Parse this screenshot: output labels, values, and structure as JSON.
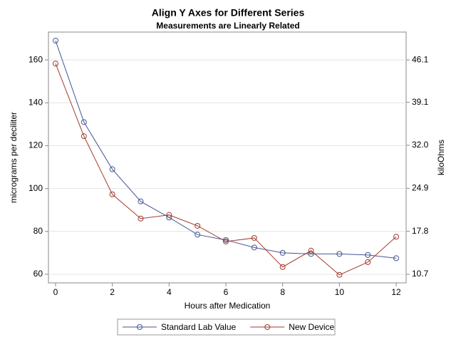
{
  "chart_data": {
    "type": "line",
    "title": "Align Y Axes for Different Series",
    "subtitle": "Measurements are Linearly Related",
    "x_label": "Hours after Medication",
    "y_label": "micrograms per deciliter",
    "y2_label": "kiloOhms",
    "x": [
      0,
      1,
      2,
      3,
      4,
      5,
      6,
      7,
      8,
      9,
      10,
      11,
      12
    ],
    "series": [
      {
        "name": "Standard Lab Value",
        "color": "#445694",
        "values": [
          169,
          131,
          109,
          94,
          86.5,
          78.5,
          76,
          72.5,
          70,
          69.5,
          69.5,
          69,
          67.5
        ]
      },
      {
        "name": "New Device",
        "color": "#a23a2e",
        "axis": "y2",
        "values": [
          45.5,
          33.5,
          23.9,
          19.9,
          20.5,
          18.7,
          16.1,
          16.7,
          11.9,
          14.6,
          10.6,
          12.7,
          16.9
        ]
      }
    ],
    "xlim": [
      -0.25,
      12.35
    ],
    "xticks": [
      0,
      2,
      4,
      6,
      8,
      10,
      12
    ],
    "ylim": [
      56,
      173
    ],
    "yticks": [
      60,
      80,
      100,
      120,
      140,
      160
    ],
    "y2lim": [
      9.28,
      50.7
    ],
    "y2ticks": [
      10.7,
      17.8,
      24.9,
      {
        "value": 32,
        "label": "32.0"
      },
      39.1,
      46.1
    ],
    "grid": true,
    "legend": "bottom"
  }
}
